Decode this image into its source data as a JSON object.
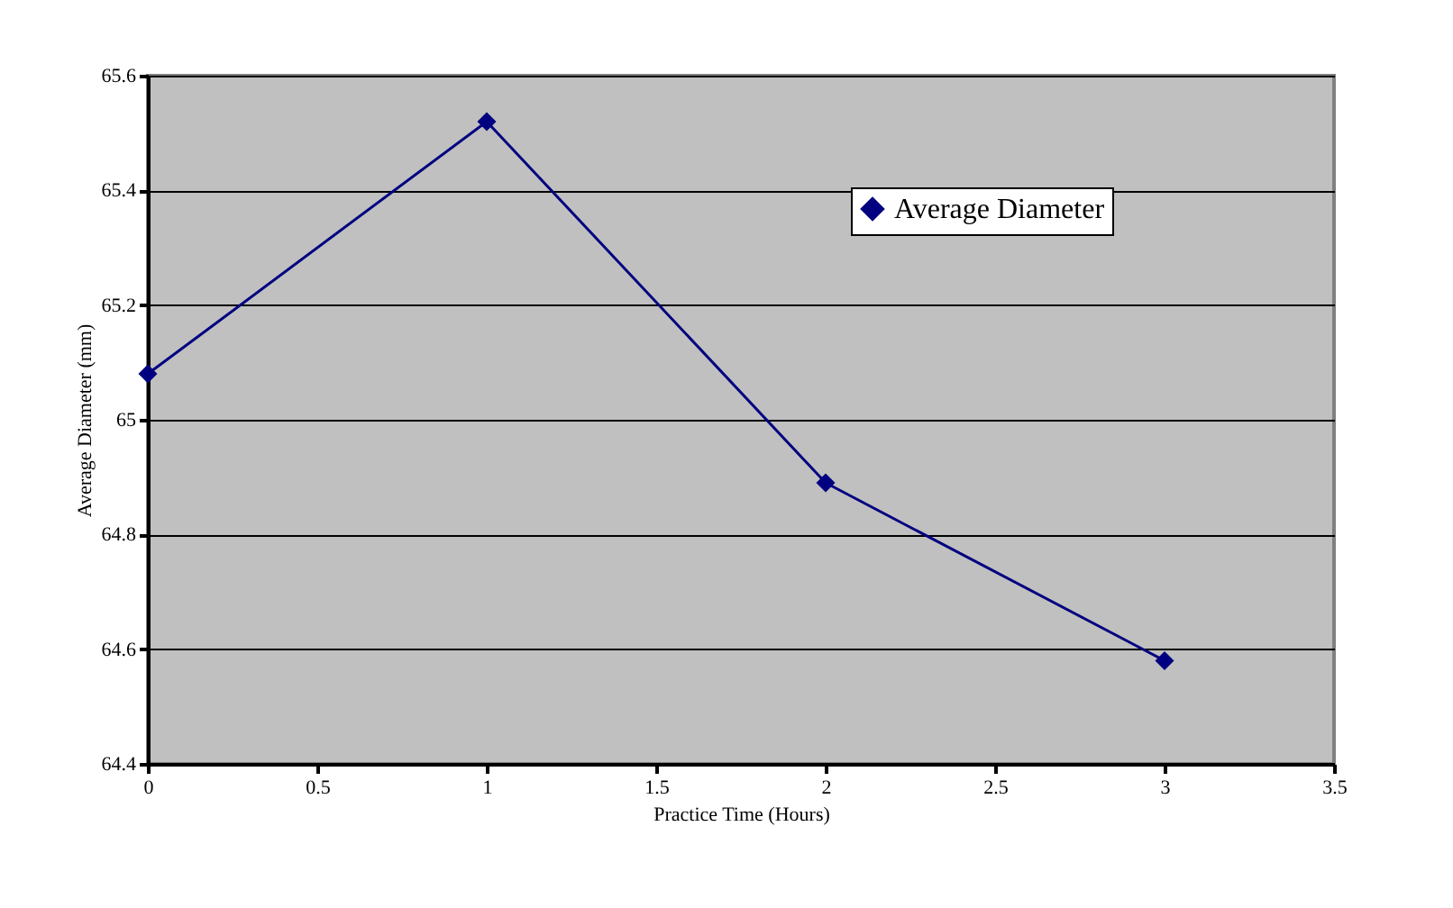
{
  "chart_data": {
    "type": "line",
    "xlabel": "Practice Time (Hours)",
    "ylabel": "Average Diameter (mm)",
    "x": [
      0,
      1,
      2,
      3
    ],
    "series": [
      {
        "name": "Average Diameter",
        "color": "#000080",
        "values": [
          65.08,
          65.52,
          64.89,
          64.58
        ]
      }
    ],
    "xlim": [
      0,
      3.5
    ],
    "xticks": [
      0,
      0.5,
      1,
      1.5,
      2,
      2.5,
      3,
      3.5
    ],
    "ylim": [
      64.4,
      65.6
    ],
    "yticks": [
      64.4,
      64.6,
      64.8,
      65,
      65.2,
      65.4,
      65.6
    ],
    "grid": "y",
    "legend": "top right",
    "marker": "diamond",
    "line_style": "solid"
  }
}
